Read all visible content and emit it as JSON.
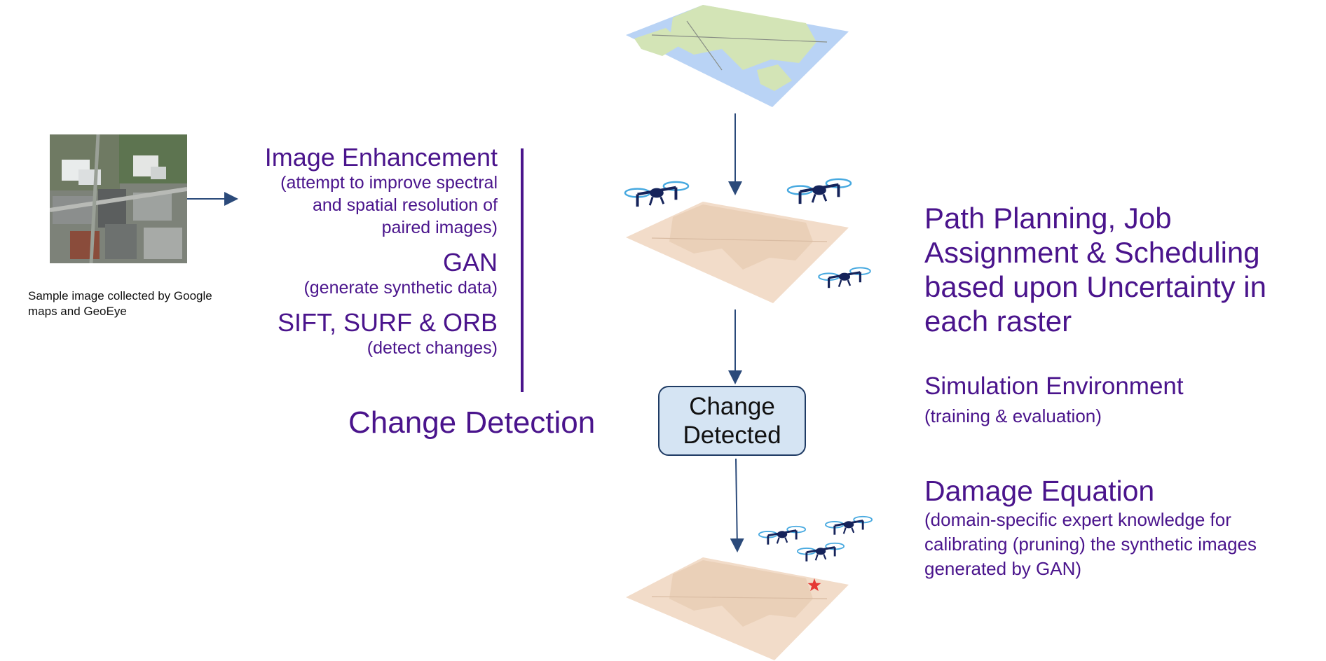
{
  "caption": {
    "line1": "Sample image collected by Google",
    "line2": "maps and GeoEye"
  },
  "left_block": {
    "image_enhancement": "Image Enhancement",
    "ie_line1": "(attempt to improve spectral",
    "ie_line2": "and spatial resolution of",
    "ie_line3": "paired images)",
    "gan": "GAN",
    "gan_sub": "(generate synthetic data)",
    "sift": "SIFT, SURF & ORB",
    "sift_sub": "(detect changes)"
  },
  "change_detection_label": "Change Detection",
  "change_box": {
    "line1": "Change",
    "line2": "Detected"
  },
  "right": {
    "path_planning": "Path Planning, Job Assignment & Scheduling based upon Uncertainty in each raster",
    "sim_title": "Simulation Environment",
    "sim_sub": "(training & evaluation)",
    "damage_title": "Damage Equation",
    "damage_sub": "(domain-specific expert knowledge for calibrating (pruning) the synthetic images generated by GAN)"
  },
  "colors": {
    "text_purple": "#4a148c",
    "arrow_navy": "#2b4a7a",
    "box_fill": "#d5e4f3",
    "box_border": "#1f3b64",
    "map_blue": "#b9d3f5",
    "map_land": "#d3e4b6",
    "map_peach": "#f2dcc9",
    "drone_navy": "#15235a",
    "rotor_ring": "#47a9e0",
    "damage_star": "#e53935"
  },
  "icons": [
    "satellite-sample-image",
    "drone-icon",
    "map-layer",
    "damage-star-icon",
    "arrow-icon"
  ]
}
